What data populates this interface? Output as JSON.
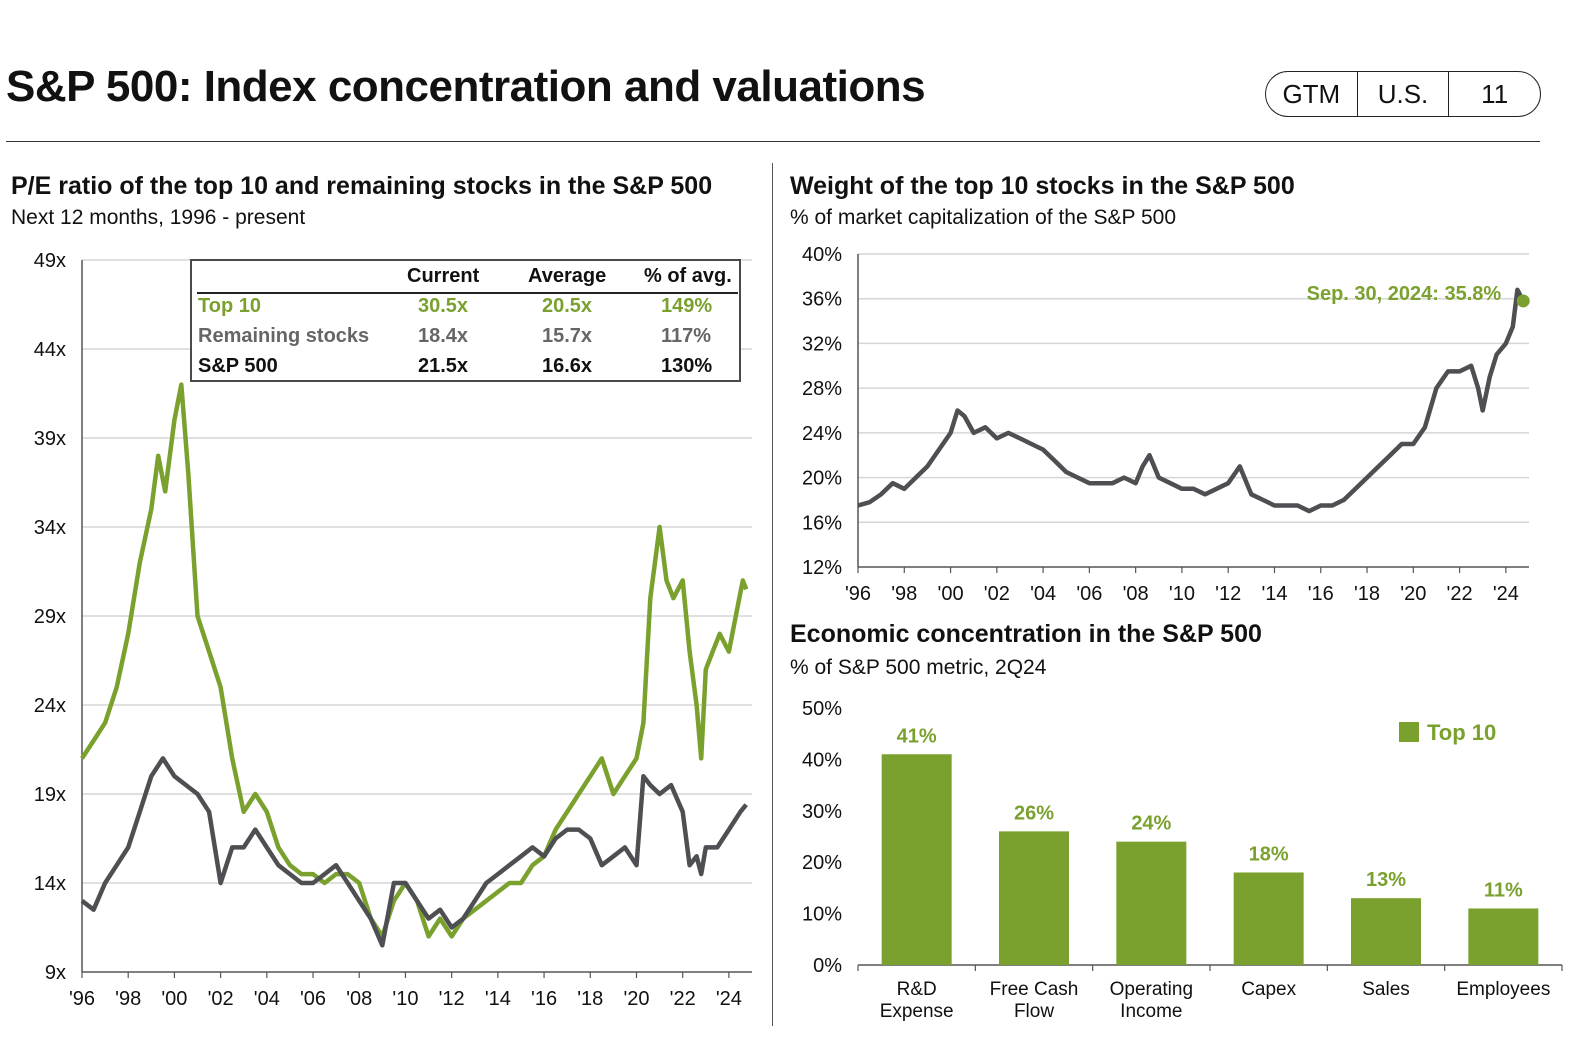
{
  "header": {
    "title": "S&P 500: Index concentration and valuations",
    "badge": [
      "GTM",
      "U.S.",
      "11"
    ]
  },
  "colors": {
    "green": "#7aa12e",
    "gray": "#4d4f53",
    "grid": "#d6d6d6"
  },
  "pe_panel": {
    "title": "P/E ratio of the top 10 and remaining stocks in the S&P 500",
    "subtitle": "Next 12 months, 1996 - present",
    "table": {
      "headers": [
        "",
        "Current",
        "Average",
        "% of avg."
      ],
      "rows": [
        {
          "label": "Top 10",
          "current": "30.5x",
          "average": "20.5x",
          "pct": "149%",
          "color": "#7aa12e"
        },
        {
          "label": "Remaining stocks",
          "current": "18.4x",
          "average": "15.7x",
          "pct": "117%",
          "color": "#666666"
        },
        {
          "label": "S&P 500",
          "current": "21.5x",
          "average": "16.6x",
          "pct": "130%",
          "color": "#111111"
        }
      ]
    }
  },
  "weight_panel": {
    "title": "Weight of the top 10 stocks in the S&P 500",
    "subtitle": "% of market capitalization of the S&P 500"
  },
  "econ_panel": {
    "title": "Economic concentration in the S&P 500",
    "subtitle": "% of S&P 500 metric, 2Q24"
  },
  "chart_data": [
    {
      "id": "pe",
      "type": "line",
      "xlim": [
        1996,
        2025
      ],
      "ylim": [
        9,
        49
      ],
      "yticks": [
        9,
        14,
        19,
        24,
        29,
        34,
        39,
        44,
        49
      ],
      "ytick_labels": [
        "9x",
        "14x",
        "19x",
        "24x",
        "29x",
        "34x",
        "39x",
        "44x",
        "49x"
      ],
      "xticks": [
        1996,
        1998,
        2000,
        2002,
        2004,
        2006,
        2008,
        2010,
        2012,
        2014,
        2016,
        2018,
        2020,
        2022,
        2024
      ],
      "xtick_labels": [
        "'96",
        "'98",
        "'00",
        "'02",
        "'04",
        "'06",
        "'08",
        "'10",
        "'12",
        "'14",
        "'16",
        "'18",
        "'20",
        "'22",
        "'24"
      ],
      "grid": true,
      "series": [
        {
          "name": "Top 10",
          "color": "#7aa12e",
          "x": [
            1996.0,
            1996.5,
            1997.0,
            1997.5,
            1998.0,
            1998.5,
            1999.0,
            1999.3,
            1999.6,
            2000.0,
            2000.3,
            2000.6,
            2001.0,
            2001.5,
            2002.0,
            2002.5,
            2003.0,
            2003.5,
            2004.0,
            2004.5,
            2005.0,
            2005.5,
            2006.0,
            2006.5,
            2007.0,
            2007.5,
            2008.0,
            2008.5,
            2009.0,
            2009.5,
            2010.0,
            2010.5,
            2011.0,
            2011.5,
            2012.0,
            2012.5,
            2013.0,
            2013.5,
            2014.0,
            2014.5,
            2015.0,
            2015.5,
            2016.0,
            2016.5,
            2017.0,
            2017.5,
            2018.0,
            2018.5,
            2019.0,
            2019.5,
            2020.0,
            2020.3,
            2020.6,
            2021.0,
            2021.3,
            2021.6,
            2022.0,
            2022.3,
            2022.6,
            2022.8,
            2023.0,
            2023.3,
            2023.6,
            2024.0,
            2024.3,
            2024.6,
            2024.75
          ],
          "y": [
            21,
            22,
            23,
            25,
            28,
            32,
            35,
            38,
            36,
            40,
            42,
            37,
            29,
            27,
            25,
            21,
            18,
            19,
            18,
            16,
            15,
            14.5,
            14.5,
            14,
            14.5,
            14.5,
            14,
            12,
            11,
            13,
            14,
            13,
            11,
            12,
            11,
            12,
            12.5,
            13,
            13.5,
            14,
            14,
            15,
            15.5,
            17,
            18,
            19,
            20,
            21,
            19,
            20,
            21,
            23,
            30,
            34,
            31,
            30,
            31,
            27,
            24,
            21,
            26,
            27,
            28,
            27,
            29,
            31,
            30.5
          ]
        },
        {
          "name": "Remaining stocks",
          "color": "#4d4f53",
          "x": [
            1996.0,
            1996.5,
            1997.0,
            1997.5,
            1998.0,
            1998.5,
            1999.0,
            1999.5,
            2000.0,
            2000.5,
            2001.0,
            2001.5,
            2002.0,
            2002.5,
            2003.0,
            2003.5,
            2004.0,
            2004.5,
            2005.0,
            2005.5,
            2006.0,
            2006.5,
            2007.0,
            2007.5,
            2008.0,
            2008.5,
            2009.0,
            2009.5,
            2010.0,
            2010.5,
            2011.0,
            2011.5,
            2012.0,
            2012.5,
            2013.0,
            2013.5,
            2014.0,
            2014.5,
            2015.0,
            2015.5,
            2016.0,
            2016.5,
            2017.0,
            2017.5,
            2018.0,
            2018.5,
            2019.0,
            2019.5,
            2020.0,
            2020.3,
            2020.6,
            2021.0,
            2021.5,
            2022.0,
            2022.3,
            2022.6,
            2022.8,
            2023.0,
            2023.5,
            2024.0,
            2024.5,
            2024.75
          ],
          "y": [
            13,
            12.5,
            14,
            15,
            16,
            18,
            20,
            21,
            20,
            19.5,
            19,
            18,
            14,
            16,
            16,
            17,
            16,
            15,
            14.5,
            14,
            14,
            14.5,
            15,
            14,
            13,
            12,
            10.5,
            14,
            14,
            13,
            12,
            12.5,
            11.5,
            12,
            13,
            14,
            14.5,
            15,
            15.5,
            16,
            15.5,
            16.5,
            17,
            17,
            16.5,
            15,
            15.5,
            16,
            15,
            20,
            19.5,
            19,
            19.5,
            18,
            15,
            15.5,
            14.5,
            16,
            16,
            17,
            18,
            18.4
          ]
        }
      ]
    },
    {
      "id": "weight",
      "type": "line",
      "xlim": [
        1996,
        2025
      ],
      "ylim": [
        12,
        40
      ],
      "yticks": [
        12,
        16,
        20,
        24,
        28,
        32,
        36,
        40
      ],
      "ytick_labels": [
        "12%",
        "16%",
        "20%",
        "24%",
        "28%",
        "32%",
        "36%",
        "40%"
      ],
      "xticks": [
        1996,
        1998,
        2000,
        2002,
        2004,
        2006,
        2008,
        2010,
        2012,
        2014,
        2016,
        2018,
        2020,
        2022,
        2024
      ],
      "xtick_labels": [
        "'96",
        "'98",
        "'00",
        "'02",
        "'04",
        "'06",
        "'08",
        "'10",
        "'12",
        "'14",
        "'16",
        "'18",
        "'20",
        "'22",
        "'24"
      ],
      "grid": true,
      "annotation": {
        "label": "Sep. 30, 2024: 35.8%",
        "x": 2024.75,
        "y": 35.8
      },
      "series": [
        {
          "name": "Top 10",
          "color": "#4d4f53",
          "x": [
            1996.0,
            1996.5,
            1997.0,
            1997.5,
            1998.0,
            1998.5,
            1999.0,
            1999.5,
            2000.0,
            2000.3,
            2000.6,
            2001.0,
            2001.5,
            2002.0,
            2002.5,
            2003.0,
            2003.5,
            2004.0,
            2004.5,
            2005.0,
            2005.5,
            2006.0,
            2006.5,
            2007.0,
            2007.5,
            2008.0,
            2008.3,
            2008.6,
            2009.0,
            2009.5,
            2010.0,
            2010.5,
            2011.0,
            2011.5,
            2012.0,
            2012.5,
            2013.0,
            2013.5,
            2014.0,
            2014.5,
            2015.0,
            2015.5,
            2016.0,
            2016.5,
            2017.0,
            2017.5,
            2018.0,
            2018.5,
            2019.0,
            2019.5,
            2020.0,
            2020.5,
            2021.0,
            2021.5,
            2022.0,
            2022.5,
            2022.8,
            2023.0,
            2023.3,
            2023.6,
            2024.0,
            2024.3,
            2024.5,
            2024.75
          ],
          "y": [
            17.5,
            17.8,
            18.5,
            19.5,
            19,
            20,
            21,
            22.5,
            24,
            26,
            25.5,
            24,
            24.5,
            23.5,
            24,
            23.5,
            23,
            22.5,
            21.5,
            20.5,
            20,
            19.5,
            19.5,
            19.5,
            20,
            19.5,
            21,
            22,
            20,
            19.5,
            19,
            19,
            18.5,
            19,
            19.5,
            21,
            18.5,
            18,
            17.5,
            17.5,
            17.5,
            17,
            17.5,
            17.5,
            18,
            19,
            20,
            21,
            22,
            23,
            23,
            24.5,
            28,
            29.5,
            29.5,
            30,
            28,
            26,
            29,
            31,
            32,
            33.5,
            36.8,
            35.8
          ]
        }
      ]
    },
    {
      "id": "econ",
      "type": "bar",
      "ylim": [
        0,
        50
      ],
      "yticks": [
        0,
        10,
        20,
        30,
        40,
        50
      ],
      "ytick_labels": [
        "0%",
        "10%",
        "20%",
        "30%",
        "40%",
        "50%"
      ],
      "legend": {
        "label": "Top 10",
        "position": "top-right"
      },
      "categories": [
        [
          "R&D",
          "Expense"
        ],
        [
          "Free Cash",
          "Flow"
        ],
        [
          "Operating",
          "Income"
        ],
        [
          "Capex"
        ],
        [
          "Sales"
        ],
        [
          "Employees"
        ]
      ],
      "values": [
        41,
        26,
        24,
        18,
        13,
        11
      ],
      "data_labels": [
        "41%",
        "26%",
        "24%",
        "18%",
        "13%",
        "11%"
      ],
      "color": "#7aa12e"
    }
  ]
}
